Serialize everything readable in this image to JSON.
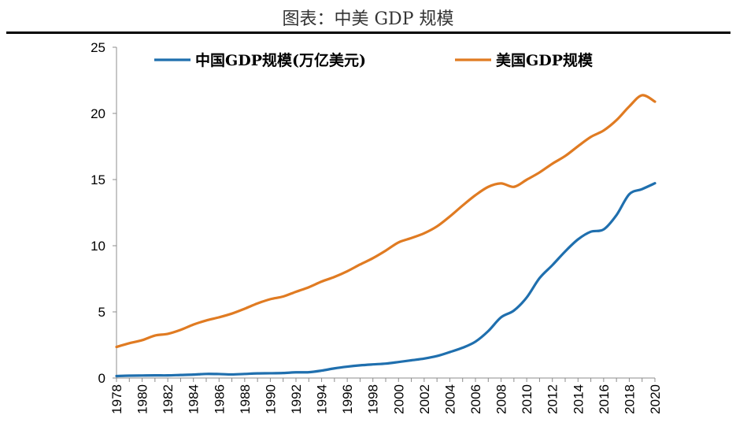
{
  "header": {
    "title": "图表：中美 GDP 规模"
  },
  "chart_data": {
    "type": "line",
    "title": "",
    "xlabel": "",
    "ylabel": "",
    "ylim": [
      0,
      25
    ],
    "yticks": [
      0,
      5,
      10,
      15,
      20,
      25
    ],
    "xlim": [
      1978,
      2020
    ],
    "xticks": [
      1978,
      1980,
      1982,
      1984,
      1986,
      1988,
      1990,
      1992,
      1994,
      1996,
      1998,
      2000,
      2002,
      2004,
      2006,
      2008,
      2010,
      2012,
      2014,
      2016,
      2018,
      2020
    ],
    "grid": false,
    "legend_position": "top",
    "x": [
      1978,
      1979,
      1980,
      1981,
      1982,
      1983,
      1984,
      1985,
      1986,
      1987,
      1988,
      1989,
      1990,
      1991,
      1992,
      1993,
      1994,
      1995,
      1996,
      1997,
      1998,
      1999,
      2000,
      2001,
      2002,
      2003,
      2004,
      2005,
      2006,
      2007,
      2008,
      2009,
      2010,
      2011,
      2012,
      2013,
      2014,
      2015,
      2016,
      2017,
      2018,
      2019,
      2020
    ],
    "series": [
      {
        "name": "中国GDP规模(万亿美元)",
        "color": "#1f6fae",
        "values": [
          0.15,
          0.18,
          0.19,
          0.2,
          0.2,
          0.23,
          0.26,
          0.31,
          0.3,
          0.27,
          0.31,
          0.35,
          0.36,
          0.38,
          0.43,
          0.44,
          0.56,
          0.73,
          0.86,
          0.96,
          1.03,
          1.09,
          1.21,
          1.34,
          1.47,
          1.66,
          1.96,
          2.29,
          2.75,
          3.55,
          4.59,
          5.1,
          6.09,
          7.55,
          8.53,
          9.57,
          10.48,
          11.06,
          11.23,
          12.31,
          13.89,
          14.28,
          14.72
        ]
      },
      {
        "name": "美国GDP规模",
        "color": "#e07b22",
        "values": [
          2.35,
          2.63,
          2.86,
          3.21,
          3.34,
          3.64,
          4.04,
          4.35,
          4.59,
          4.87,
          5.24,
          5.64,
          5.96,
          6.16,
          6.52,
          6.86,
          7.29,
          7.64,
          8.07,
          8.58,
          9.06,
          9.63,
          10.25,
          10.58,
          10.94,
          11.46,
          12.21,
          13.04,
          13.82,
          14.45,
          14.71,
          14.45,
          14.99,
          15.54,
          16.2,
          16.78,
          17.52,
          18.22,
          18.71,
          19.49,
          20.53,
          21.37,
          20.89
        ]
      }
    ]
  }
}
